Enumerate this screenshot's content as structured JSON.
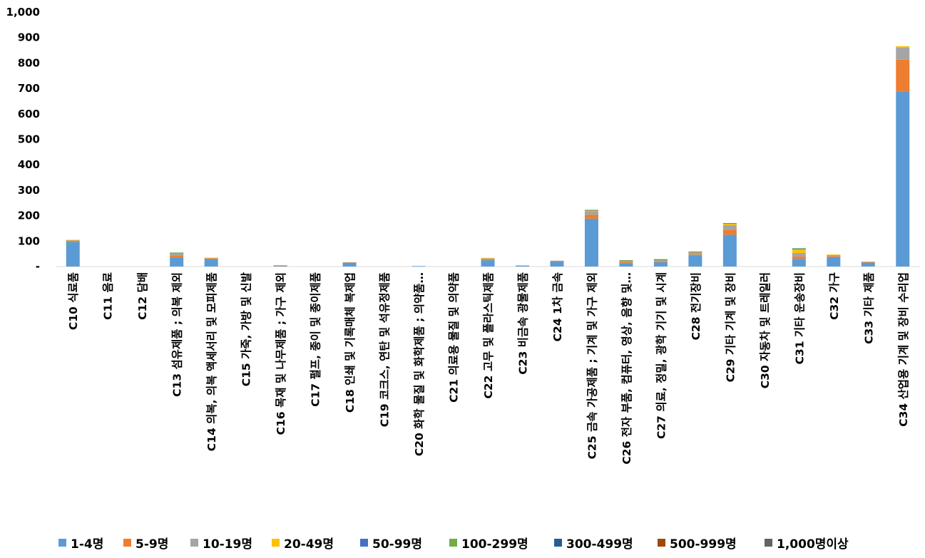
{
  "chart_data": {
    "type": "bar",
    "stacked": true,
    "grid": false,
    "legend_position": "bottom",
    "ylim": [
      0,
      1000
    ],
    "yticks": [
      0,
      100,
      200,
      300,
      400,
      500,
      600,
      700,
      800,
      900,
      1000
    ],
    "ytick_labels": [
      "-",
      "100",
      "200",
      "300",
      "400",
      "500",
      "600",
      "700",
      "800",
      "900",
      "1,000"
    ],
    "categories": [
      "C10 식료품",
      "C11 음료",
      "C12 담배",
      "C13 섬유제품 ; 의복 제외",
      "C14 의복, 의복 액세서리 및 모피제품",
      "C15 가죽, 가방 및 신발",
      "C16 목재 및 나무제품 ; 가구 제외",
      "C17 펄프, 종이 및 종이제품",
      "C18 인쇄 및 기록매체 복제업",
      "C19 코크스, 연탄 및 석유정제품",
      "C20 화학 물질 및 화학제품 ; 의약품…",
      "C21 의료용 물질 및 의약품",
      "C22 고무 및 플라스틱제품",
      "C23 비금속 광물제품",
      "C24 1차 금속",
      "C25 금속 가공제품 ; 기계 및 가구 제외",
      "C26 전자 부품, 컴퓨터, 영상, 음향 및…",
      "C27 의료, 정밀, 광학 기기 및 시계",
      "C28 전기장비",
      "C29 기타 기계 및 장비",
      "C30 자동차 및 트레일러",
      "C31 기타 운송장비",
      "C32 가구",
      "C33 기타 제품",
      "C34 산업용 기계 및 장비 수리업"
    ],
    "series": [
      {
        "name": "1-4명",
        "color": "#5B9BD5",
        "values": [
          97,
          0,
          0,
          36,
          28,
          0,
          3,
          0,
          15,
          0,
          2,
          0,
          25,
          4,
          20,
          188,
          13,
          17,
          42,
          125,
          0,
          30,
          37,
          16,
          688
        ]
      },
      {
        "name": "5-9명",
        "color": "#ED7D31",
        "values": [
          4,
          0,
          0,
          6,
          3,
          0,
          1,
          0,
          1,
          0,
          0,
          0,
          4,
          0,
          1,
          16,
          4,
          3,
          5,
          20,
          0,
          9,
          4,
          1,
          125
        ]
      },
      {
        "name": "10-19명",
        "color": "#A5A5A5",
        "values": [
          3,
          0,
          0,
          9,
          3,
          0,
          1,
          0,
          1,
          0,
          0,
          0,
          4,
          0,
          2,
          13,
          4,
          4,
          8,
          18,
          0,
          15,
          4,
          2,
          48
        ]
      },
      {
        "name": "20-49명",
        "color": "#FFC000",
        "values": [
          1,
          0,
          0,
          2,
          1,
          0,
          0,
          0,
          0,
          0,
          0,
          0,
          1,
          0,
          0,
          4,
          2,
          2,
          2,
          6,
          0,
          15,
          2,
          0,
          5
        ]
      },
      {
        "name": "50-99명",
        "color": "#4472C4",
        "values": [
          0,
          0,
          0,
          1,
          0,
          0,
          0,
          0,
          0,
          0,
          0,
          0,
          0,
          0,
          0,
          1,
          1,
          1,
          1,
          1,
          0,
          1,
          0,
          0,
          0
        ]
      },
      {
        "name": "100-299명",
        "color": "#70AD47",
        "values": [
          0,
          0,
          0,
          1,
          0,
          0,
          0,
          0,
          0,
          0,
          0,
          0,
          0,
          0,
          0,
          1,
          1,
          2,
          1,
          1,
          0,
          2,
          0,
          0,
          0
        ]
      },
      {
        "name": "300-499명",
        "color": "#255E91",
        "values": [
          0,
          0,
          0,
          0,
          0,
          0,
          0,
          0,
          0,
          0,
          0,
          0,
          0,
          0,
          0,
          0,
          0,
          0,
          0,
          0,
          0,
          0,
          0,
          0,
          0
        ]
      },
      {
        "name": "500-999명",
        "color": "#9E480E",
        "values": [
          0,
          0,
          0,
          0,
          0,
          0,
          0,
          0,
          0,
          0,
          0,
          0,
          0,
          0,
          0,
          0,
          0,
          0,
          0,
          0,
          0,
          0,
          0,
          0,
          0
        ]
      },
      {
        "name": "1,000명이상",
        "color": "#636363",
        "values": [
          0,
          0,
          0,
          0,
          0,
          0,
          0,
          0,
          0,
          0,
          0,
          0,
          0,
          0,
          0,
          0,
          0,
          0,
          0,
          0,
          0,
          0,
          0,
          0,
          0
        ]
      }
    ]
  }
}
